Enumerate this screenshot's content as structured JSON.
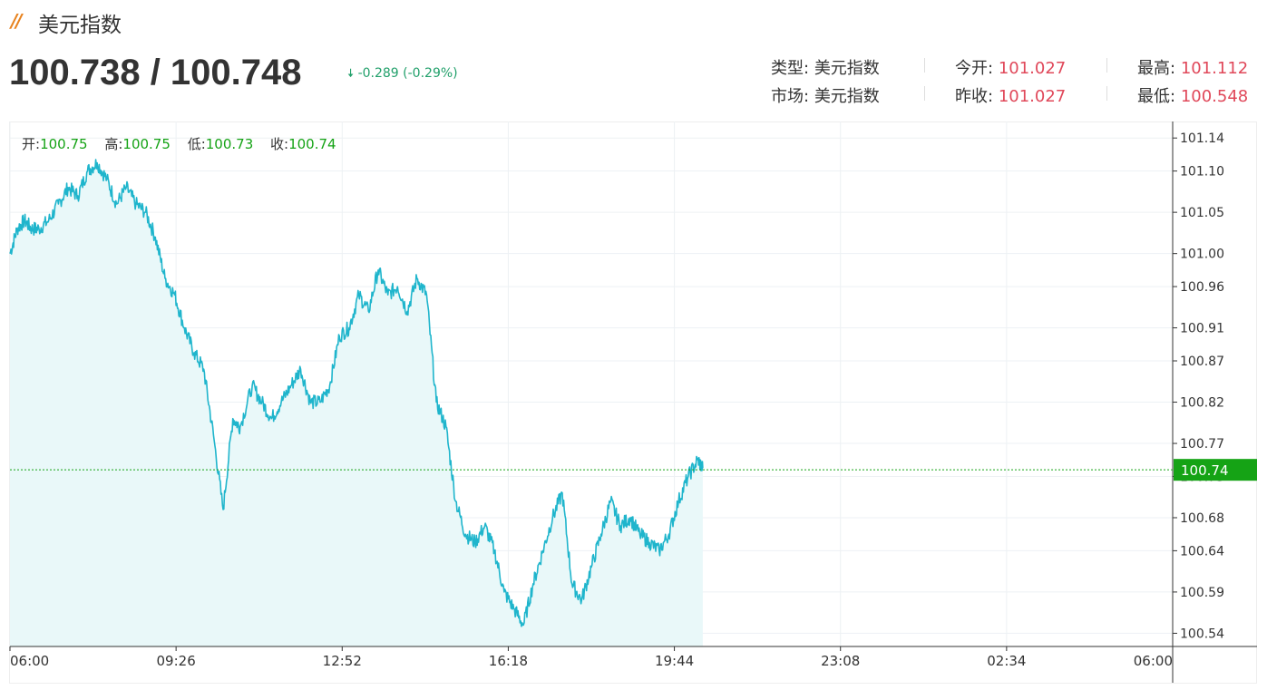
{
  "header": {
    "logo_mark": "//",
    "title": "美元指数",
    "price": "100.738 / 100.748",
    "change_arrow": "arrow-down-icon",
    "change": "-0.289 (-0.29%)"
  },
  "info": {
    "type_label": "类型:",
    "type_value": "美元指数",
    "market_label": "市场:",
    "market_value": "美元指数",
    "open_label": "今开:",
    "open_value": "101.027",
    "prev_close_label": "昨收:",
    "prev_close_value": "101.027",
    "high_label": "最高:",
    "high_value": "101.112",
    "low_label": "最低:",
    "low_value": "100.548"
  },
  "ohlc": {
    "open_label": "开:",
    "open": "100.75",
    "high_label": "高:",
    "high": "100.75",
    "low_label": "低:",
    "low": "100.73",
    "close_label": "收:",
    "close": "100.74"
  },
  "colors": {
    "line": "#1fb5cc",
    "fill": "#e9f8f9",
    "last_price": "#15a315",
    "up_red": "#e0485a",
    "down_green": "#22a06b"
  },
  "chart_data": {
    "type": "area",
    "x_ticks": [
      "06:00",
      "09:26",
      "12:52",
      "16:18",
      "19:44",
      "23:08",
      "02:34",
      "06:00"
    ],
    "y_ticks": [
      "101.14",
      "101.10",
      "101.05",
      "101.00",
      "100.96",
      "100.91",
      "100.87",
      "100.82",
      "100.77",
      "100.73",
      "100.68",
      "100.64",
      "100.59",
      "100.54"
    ],
    "ylim": [
      100.524,
      101.16
    ],
    "x_range_hours": [
      0,
      24
    ],
    "last_price_label": "100.74",
    "last_price": 100.738,
    "series": [
      {
        "x": [
          0,
          0.15,
          0.3,
          0.45,
          0.6,
          0.8,
          1.0,
          1.2,
          1.4,
          1.6,
          1.8,
          2.0,
          2.2,
          2.4,
          2.6,
          2.8,
          3.0,
          3.2,
          3.4,
          3.6,
          3.8,
          4.0,
          4.2,
          4.4,
          4.6,
          4.75,
          5.0,
          5.2,
          5.4,
          5.6,
          5.8,
          6.0,
          6.2,
          6.4,
          6.6,
          6.8,
          7.0,
          7.2,
          7.4,
          7.6,
          7.8,
          8.0,
          8.2,
          8.4,
          8.6,
          8.8,
          9.0,
          9.2,
          9.4,
          9.6,
          9.8,
          10.0,
          10.2,
          10.4,
          10.6,
          10.8,
          11.0,
          11.2,
          11.4,
          11.6,
          11.8,
          12.0,
          12.2,
          12.4,
          12.6,
          12.8,
          13.0,
          13.2,
          13.4,
          13.6,
          13.8,
          14.0,
          14.2,
          14.3
        ],
        "y": [
          101.0,
          101.03,
          101.04,
          101.03,
          101.03,
          101.04,
          101.06,
          101.08,
          101.07,
          101.1,
          101.11,
          101.09,
          101.06,
          101.08,
          101.06,
          101.05,
          101.02,
          100.97,
          100.95,
          100.91,
          100.88,
          100.86,
          100.78,
          100.69,
          100.8,
          100.79,
          100.84,
          100.82,
          100.8,
          100.82,
          100.84,
          100.86,
          100.82,
          100.82,
          100.84,
          100.9,
          100.91,
          100.95,
          100.93,
          100.98,
          100.95,
          100.96,
          100.93,
          100.97,
          100.95,
          100.82,
          100.79,
          100.7,
          100.66,
          100.65,
          100.67,
          100.64,
          100.59,
          100.57,
          100.55,
          100.6,
          100.64,
          100.68,
          100.71,
          100.6,
          100.58,
          100.62,
          100.66,
          100.7,
          100.67,
          100.68,
          100.66,
          100.65,
          100.64,
          100.66,
          100.7,
          100.73,
          100.75,
          100.74
        ]
      }
    ]
  }
}
